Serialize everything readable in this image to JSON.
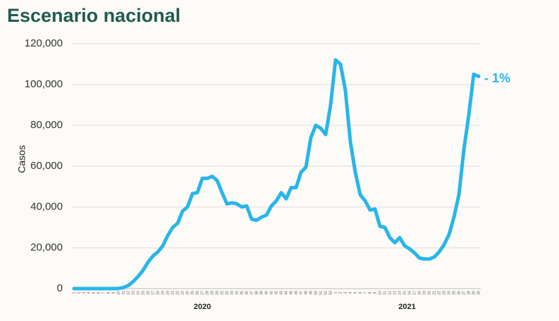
{
  "chart_data": {
    "type": "line",
    "title": "Escenario nacional",
    "y_label": "Casos",
    "annotation": "- 1%",
    "year_labels": [
      "2020",
      "2021"
    ],
    "categories": [
      "1",
      "2",
      "3",
      "4",
      "5",
      "6",
      "7",
      "8",
      "9",
      "10",
      "11",
      "12",
      "13",
      "14",
      "15",
      "16",
      "17",
      "18",
      "19",
      "20",
      "21",
      "22",
      "23",
      "24",
      "25",
      "26",
      "27",
      "28",
      "29",
      "30",
      "31",
      "32",
      "33",
      "34",
      "35",
      "36",
      "37",
      "38",
      "39",
      "40",
      "41",
      "42",
      "43",
      "44",
      "45",
      "46",
      "47",
      "48",
      "49",
      "50",
      "51",
      "52",
      "53",
      "1",
      "2",
      "3",
      "4",
      "5",
      "6",
      "7",
      "8",
      "9",
      "10",
      "11",
      "12",
      "13",
      "14",
      "15",
      "16",
      "17",
      "18",
      "19",
      "20",
      "21",
      "22",
      "23",
      "24",
      "25",
      "26",
      "27",
      "28",
      "29",
      "30"
    ],
    "series": [
      {
        "name": "Casos",
        "color": "#29b5e8",
        "values": [
          0,
          0,
          0,
          0,
          0,
          0,
          0,
          0,
          0,
          100,
          500,
          1500,
          3500,
          6000,
          9000,
          13000,
          16000,
          18000,
          21000,
          26000,
          30000,
          32000,
          38000,
          40000,
          46500,
          47000,
          54000,
          54000,
          55000,
          53000,
          47000,
          41500,
          42000,
          41500,
          40000,
          40500,
          34000,
          33500,
          35000,
          36000,
          40500,
          43000,
          47000,
          44000,
          49500,
          49500,
          57000,
          59500,
          74000,
          80000,
          78500,
          75500,
          90000,
          112000,
          110000,
          97000,
          72000,
          57000,
          46000,
          43000,
          38500,
          39000,
          30500,
          30000,
          25000,
          22500,
          25000,
          21000,
          19500,
          17500,
          15000,
          14500,
          14500,
          15500,
          18000,
          21500,
          26500,
          35000,
          46000,
          68000,
          85000,
          105000,
          104000
        ]
      }
    ],
    "ylim": [
      0,
      120000
    ],
    "yticks": [
      0,
      {
        "value": 20000,
        "label": "20,000"
      },
      {
        "value": 40000,
        "label": "40,000"
      },
      {
        "value": 60000,
        "label": "60,000"
      },
      {
        "value": 80000,
        "label": "80,000"
      },
      {
        "value": 100000,
        "label": "100,000"
      },
      {
        "value": 120000,
        "label": "120,000"
      }
    ],
    "grid": true
  }
}
